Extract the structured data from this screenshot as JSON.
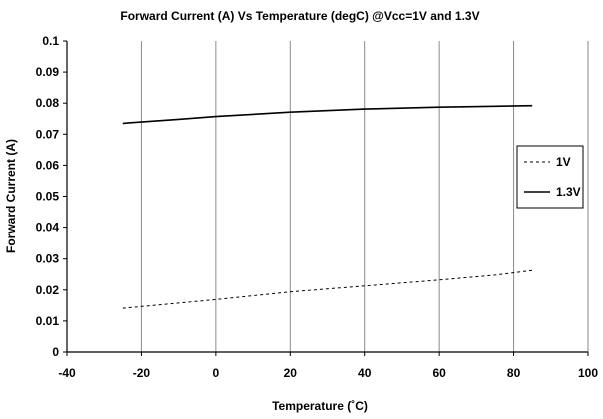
{
  "chart_data": {
    "type": "line",
    "title": "Forward Current (A) Vs Temperature (degC) @Vcc=1V and 1.3V",
    "xlabel": "Temperature (˚C)",
    "ylabel": "Forward Current (A)",
    "xlim": [
      -40,
      100
    ],
    "ylim": [
      0,
      0.1
    ],
    "x_ticks": [
      "-40",
      "-20",
      "0",
      "20",
      "40",
      "60",
      "80",
      "100"
    ],
    "y_ticks": [
      "0",
      "0.01",
      "0.02",
      "0.03",
      "0.04",
      "0.05",
      "0.06",
      "0.07",
      "0.08",
      "0.09",
      "0.1"
    ],
    "grid": "vertical",
    "legend_position": "right",
    "series": [
      {
        "name": "1V",
        "style": "dashed",
        "color": "#000000",
        "x": [
          -25,
          -10,
          0,
          20,
          40,
          60,
          75,
          85
        ],
        "y": [
          0.0141,
          0.0158,
          0.0169,
          0.0194,
          0.0213,
          0.0232,
          0.0248,
          0.0263
        ]
      },
      {
        "name": "1.3V",
        "style": "solid",
        "color": "#000000",
        "x": [
          -25,
          -10,
          0,
          20,
          40,
          60,
          75,
          85
        ],
        "y": [
          0.0735,
          0.0748,
          0.0757,
          0.0771,
          0.0781,
          0.0787,
          0.079,
          0.0792
        ]
      }
    ]
  }
}
